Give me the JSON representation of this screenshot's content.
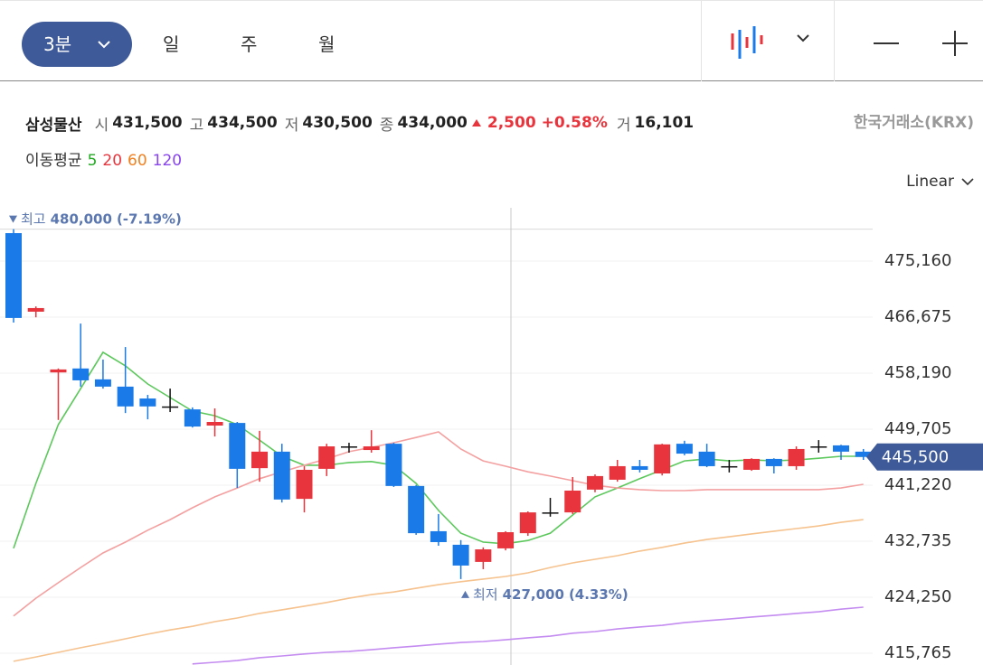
{
  "toolbar": {
    "intervals": [
      "3분",
      "일",
      "주",
      "월"
    ]
  },
  "quote": {
    "name": "삼성물산",
    "fields": [
      {
        "label": "시",
        "value": "431,500"
      },
      {
        "label": "고",
        "value": "434,500"
      },
      {
        "label": "저",
        "value": "430,500"
      },
      {
        "label": "종",
        "value": "434,000"
      }
    ],
    "change": "2,500",
    "change_pct": "+0.58%",
    "volume_label": "거",
    "volume": "16,101",
    "exchange": "한국거래소(KRX)"
  },
  "scale_mode": "Linear",
  "chart_data": {
    "type": "candlestick",
    "ma_label": "이동평균",
    "categories": [
      null,
      null,
      null,
      null,
      null,
      null,
      null,
      null,
      null,
      null,
      null,
      null,
      null,
      null,
      null,
      null,
      null,
      null,
      null,
      null,
      null,
      null,
      null,
      null,
      null,
      null,
      null,
      null,
      null,
      null,
      null,
      null,
      null,
      null,
      null,
      null,
      null,
      null,
      null
    ],
    "open": [
      479400,
      467500,
      458300,
      458900,
      457250,
      456150,
      454350,
      453150,
      452700,
      450250,
      450650,
      443800,
      446300,
      439150,
      443700,
      447100,
      446550,
      447500,
      441100,
      434250,
      432200,
      429600,
      431650,
      433950,
      437100,
      437100,
      440550,
      442050,
      444100,
      443000,
      447500,
      446300,
      444100,
      443550,
      445200,
      444100,
      447100,
      447250,
      446300
    ],
    "high": [
      480000,
      468300,
      458900,
      465700,
      460250,
      462150,
      454900,
      455850,
      453000,
      452850,
      450800,
      449450,
      447500,
      444100,
      447500,
      447650,
      449550,
      447650,
      441250,
      436850,
      432900,
      431800,
      434250,
      437250,
      439300,
      442450,
      442850,
      445050,
      445050,
      447500,
      447950,
      447500,
      445050,
      445300,
      445300,
      447100,
      448050,
      447350,
      446700
    ],
    "low": [
      465850,
      466650,
      451100,
      456150,
      455850,
      452150,
      451200,
      452300,
      449950,
      448600,
      440800,
      441750,
      438600,
      437100,
      442600,
      446150,
      446150,
      440950,
      433700,
      432050,
      427000,
      428500,
      431350,
      433550,
      436450,
      436850,
      440150,
      441750,
      443150,
      442700,
      445750,
      443950,
      443150,
      443400,
      443000,
      443550,
      446150,
      445050,
      445050
    ],
    "close": [
      466550,
      468050,
      458750,
      457100,
      456150,
      453150,
      453150,
      453150,
      450100,
      450800,
      443700,
      446300,
      439050,
      443550,
      447100,
      447100,
      447100,
      441100,
      433950,
      432600,
      429050,
      431500,
      434100,
      437100,
      437100,
      440400,
      442600,
      444100,
      443550,
      447400,
      446000,
      444100,
      444100,
      445200,
      444100,
      446700,
      447100,
      446300,
      445500
    ],
    "up_color": "#e8343c",
    "down_color": "#1a7be8",
    "flat_color": "#111111",
    "series": [
      {
        "name": "5",
        "color": "#5cc85c",
        "values": [
          431650,
          441500,
          450400,
          455850,
          461350,
          459300,
          456550,
          454500,
          452450,
          451750,
          450400,
          448050,
          445600,
          444250,
          444250,
          444650,
          444800,
          444250,
          441500,
          437400,
          433950,
          432600,
          432350,
          432850,
          433950,
          436700,
          439450,
          440800,
          442200,
          443550,
          444900,
          445200,
          444900,
          445050,
          444900,
          445050,
          445300,
          445600,
          445600
        ]
      },
      {
        "name": "20",
        "color": "#f4a0a0",
        "values": [
          421400,
          424100,
          426450,
          428750,
          430950,
          432600,
          434400,
          436000,
          437800,
          439450,
          440800,
          442200,
          443250,
          444250,
          445200,
          446300,
          446950,
          447650,
          448450,
          449300,
          446700,
          444900,
          444100,
          443250,
          442600,
          441900,
          441200,
          440800,
          440550,
          440400,
          440400,
          440550,
          440550,
          440550,
          440550,
          440550,
          440550,
          440800,
          441350
        ]
      },
      {
        "name": "60",
        "color": "#f6c28e",
        "values": [
          414550,
          415200,
          415900,
          416600,
          417250,
          417950,
          418650,
          419300,
          419850,
          420550,
          421100,
          421800,
          422350,
          422900,
          423450,
          424100,
          424650,
          425050,
          425600,
          426150,
          426600,
          427000,
          427400,
          427950,
          428750,
          429450,
          430000,
          430550,
          431250,
          431800,
          432450,
          433000,
          433400,
          433850,
          434250,
          434650,
          435050,
          435600,
          436000
        ]
      },
      {
        "name": "120",
        "color": "#c48cf0",
        "values": [
          null,
          null,
          null,
          null,
          null,
          null,
          null,
          null,
          414150,
          414400,
          414650,
          415100,
          415350,
          415650,
          415900,
          416050,
          416300,
          416600,
          416850,
          417150,
          417400,
          417550,
          417800,
          418100,
          418350,
          418800,
          419050,
          419450,
          419750,
          420000,
          420400,
          420700,
          420950,
          421250,
          421500,
          421800,
          422050,
          422450,
          422750
        ]
      }
    ],
    "legend_colors": {
      "5": "#22aa22",
      "20": "#e8343c",
      "60": "#f08020",
      "120": "#8844ee"
    },
    "ylim": [
      413986,
      483234
    ],
    "yticks": [
      {
        "value": 475160,
        "label": "475,160"
      },
      {
        "value": 466675,
        "label": "466,675"
      },
      {
        "value": 458190,
        "label": "458,190"
      },
      {
        "value": 449705,
        "label": "449,705"
      },
      {
        "value": 441220,
        "label": "441,220"
      },
      {
        "value": 432735,
        "label": "432,735"
      },
      {
        "value": 424250,
        "label": "424,250"
      },
      {
        "value": 415765,
        "label": "415,765"
      }
    ],
    "grid": true,
    "high_annotation": {
      "text": "최고",
      "value": 480000,
      "label": "480,000",
      "change": "(-7.19%)"
    },
    "low_annotation": {
      "text": "최저",
      "value": 427000,
      "label": "427,000",
      "change": "(4.33%)"
    },
    "last_price": {
      "value": 445500,
      "label": "445,500"
    }
  }
}
